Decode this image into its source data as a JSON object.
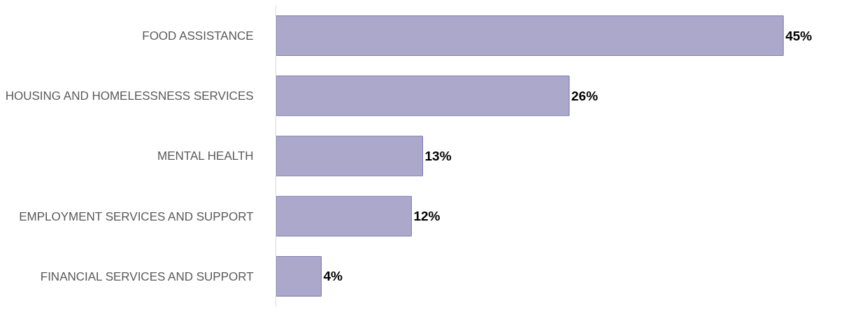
{
  "chart_data": {
    "type": "bar",
    "orientation": "horizontal",
    "categories": [
      "FOOD ASSISTANCE",
      "HOUSING AND HOMELESSNESS SERVICES",
      "MENTAL HEALTH",
      "EMPLOYMENT SERVICES AND SUPPORT",
      "FINANCIAL SERVICES AND SUPPORT"
    ],
    "values": [
      45,
      26,
      13,
      12,
      4
    ],
    "value_labels": [
      "45%",
      "26%",
      "13%",
      "12%",
      "4%"
    ],
    "color": "#aba8cc",
    "legend": false
  }
}
